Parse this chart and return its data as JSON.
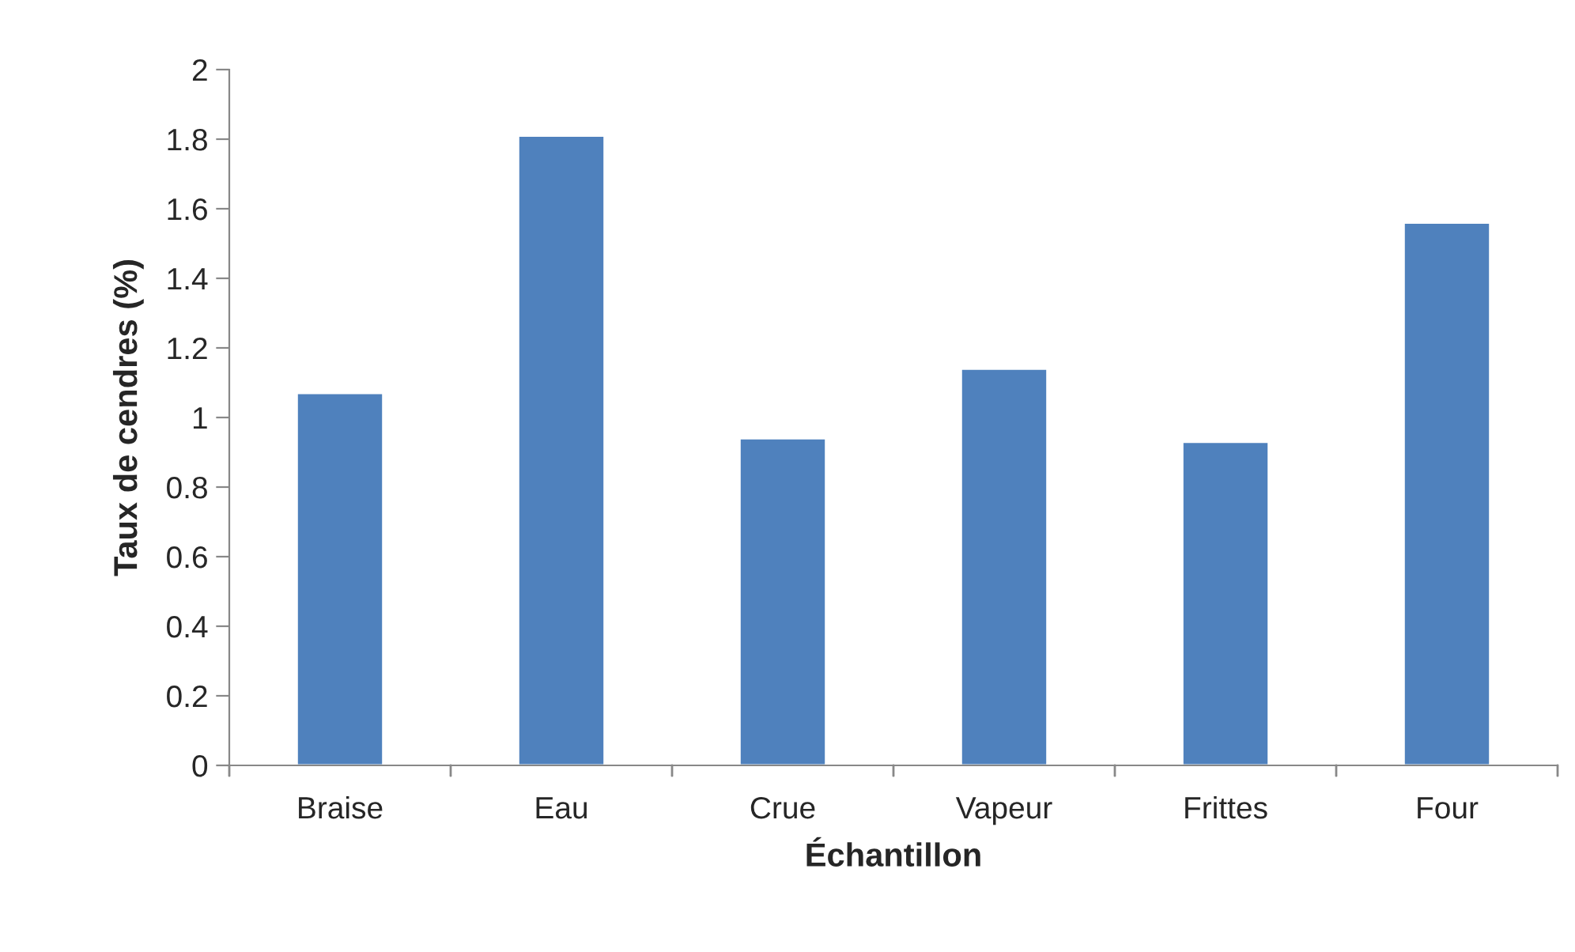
{
  "chart_data": {
    "type": "bar",
    "xlabel": "Échantillon",
    "ylabel": "Taux de cendres (%)",
    "categories": [
      "Braise",
      "Eau",
      "Crue",
      "Vapeur",
      "Frittes",
      "Four"
    ],
    "values": [
      1.07,
      1.81,
      0.94,
      1.14,
      0.93,
      1.56
    ],
    "color": "#4f81bd",
    "ylim": [
      0,
      2
    ],
    "yticks": [
      0,
      {
        "value": 0.2,
        "label": "0.2"
      },
      {
        "value": 0.4,
        "label": "0.4"
      },
      {
        "value": 0.6,
        "label": "0.6"
      },
      {
        "value": 0.8,
        "label": "0.8"
      },
      1,
      {
        "value": 1.2,
        "label": "1.2"
      },
      {
        "value": 1.4,
        "label": "1.4"
      },
      {
        "value": 1.6,
        "label": "1.6"
      },
      {
        "value": 1.8,
        "label": "1.8"
      },
      2
    ],
    "grid": false,
    "legend": false
  }
}
